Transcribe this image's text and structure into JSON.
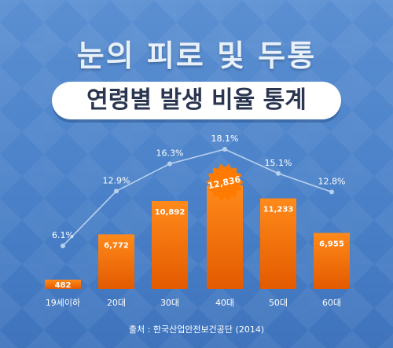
{
  "header": {
    "title_line1": "눈의 피로 및 두통",
    "title_line2": "연령별 발생 비율 통계"
  },
  "footer": {
    "source": "출처 : 한국산업안전보건공단 (2014)"
  },
  "colors": {
    "bar_top": "#ff8a1a",
    "bar_bottom": "#e35a00",
    "line": "#b8d0ee",
    "highlight": "#ff7a00"
  },
  "chart_data": {
    "type": "bar",
    "title": "",
    "xlabel": "",
    "ylabel": "",
    "categories": [
      "19세이하",
      "20대",
      "30대",
      "40대",
      "50대",
      "60대"
    ],
    "series": [
      {
        "values": [
          482,
          6772,
          10892,
          12836,
          11233,
          6955
        ],
        "labels": [
          "482",
          "6,772",
          "10,892",
          "12,836",
          "11,233",
          "6,955"
        ]
      },
      {
        "type": "line",
        "values": [
          6.1,
          12.9,
          16.3,
          18.1,
          15.1,
          12.8
        ],
        "labels": [
          "6.1%",
          "12.9%",
          "16.3%",
          "18.1%",
          "15.1%",
          "12.8%"
        ]
      }
    ],
    "highlight_index": 3,
    "grid": false,
    "legend": "none"
  }
}
